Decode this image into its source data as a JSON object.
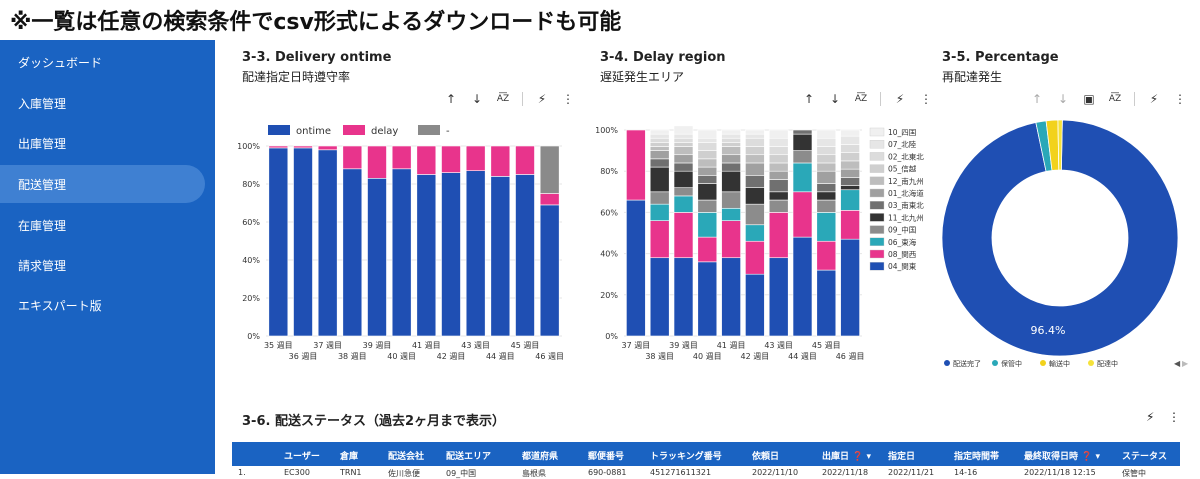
{
  "banner": "※一覧は任意の検索条件でcsv形式によるダウンロードも可能",
  "sidebar": {
    "items": [
      {
        "label": "ダッシュボード"
      },
      {
        "label": "入庫管理"
      },
      {
        "label": "出庫管理"
      },
      {
        "label": "配送管理",
        "active": true
      },
      {
        "label": "在庫管理"
      },
      {
        "label": "請求管理"
      },
      {
        "label": "エキスパート版"
      }
    ]
  },
  "panels": [
    {
      "title": "3-3. Delivery ontime",
      "subtitle": "配達指定日時遵守率"
    },
    {
      "title": "3-4. Delay region",
      "subtitle": "遅延発生エリア"
    },
    {
      "title": "3-5. Percentage",
      "subtitle": "再配達発生"
    }
  ],
  "toolbar_icons": [
    "arrow-up-icon",
    "arrow-down-icon",
    "sort-az-icon",
    "bolt-icon",
    "more-vert-icon"
  ],
  "chart_data": [
    {
      "type": "bar",
      "stacked": true,
      "categories": [
        "35 週目",
        "36 週目",
        "37 週目",
        "38 週目",
        "39 週目",
        "40 週目",
        "41 週目",
        "42 週目",
        "43 週目",
        "44 週目",
        "45 週目",
        "46 週目"
      ],
      "series": [
        {
          "name": "ontime",
          "color": "#1f4fb3",
          "values": [
            99,
            99,
            98,
            88,
            83,
            88,
            85,
            86,
            87,
            84,
            85,
            69
          ]
        },
        {
          "name": "delay",
          "color": "#e8348c",
          "values": [
            1,
            1,
            2,
            12,
            17,
            12,
            15,
            14,
            13,
            16,
            15,
            6
          ]
        },
        {
          "name": "-",
          "color": "#8a8a8a",
          "values": [
            0,
            0,
            0,
            0,
            0,
            0,
            0,
            0,
            0,
            0,
            0,
            25
          ]
        }
      ],
      "ylim": [
        0,
        100
      ],
      "yticks": [
        "0%",
        "20%",
        "40%",
        "60%",
        "80%",
        "100%"
      ],
      "legend": "top"
    },
    {
      "type": "bar",
      "stacked": true,
      "categories": [
        "37 週目",
        "38 週目",
        "39 週目",
        "40 週目",
        "41 週目",
        "42 週目",
        "43 週目",
        "44 週目",
        "45 週目",
        "46 週目"
      ],
      "series": [
        {
          "name": "04_関東",
          "color": "#1f4fb3",
          "values": [
            66,
            38,
            38,
            36,
            38,
            30,
            38,
            48,
            32,
            47
          ]
        },
        {
          "name": "08_関西",
          "color": "#e8348c",
          "values": [
            34,
            18,
            22,
            12,
            18,
            16,
            22,
            22,
            14,
            14
          ]
        },
        {
          "name": "06_東海",
          "color": "#2aa8b8",
          "values": [
            0,
            8,
            8,
            12,
            6,
            8,
            0,
            14,
            14,
            10
          ]
        },
        {
          "name": "09_中国",
          "color": "#8c8c8c",
          "values": [
            0,
            6,
            4,
            6,
            8,
            10,
            6,
            6,
            6,
            0
          ]
        },
        {
          "name": "11_北九州",
          "color": "#333333",
          "values": [
            0,
            12,
            8,
            8,
            10,
            8,
            4,
            8,
            4,
            2
          ]
        },
        {
          "name": "03_南東北",
          "color": "#707070",
          "values": [
            0,
            4,
            4,
            4,
            4,
            6,
            6,
            2,
            4,
            4
          ]
        },
        {
          "name": "01_北海道",
          "color": "#a0a0a0",
          "values": [
            0,
            4,
            4,
            4,
            4,
            6,
            4,
            0,
            6,
            4
          ]
        },
        {
          "name": "12_南九州",
          "color": "#bdbdbd",
          "values": [
            0,
            2,
            4,
            4,
            4,
            4,
            4,
            0,
            4,
            4
          ]
        },
        {
          "name": "05_信越",
          "color": "#cfcfcf",
          "values": [
            0,
            2,
            2,
            4,
            2,
            4,
            4,
            0,
            4,
            4
          ]
        },
        {
          "name": "02_北東北",
          "color": "#dcdcdc",
          "values": [
            0,
            2,
            2,
            4,
            2,
            4,
            4,
            0,
            4,
            4
          ]
        },
        {
          "name": "07_北陸",
          "color": "#e6e6e6",
          "values": [
            0,
            2,
            2,
            2,
            2,
            2,
            4,
            0,
            4,
            4
          ]
        },
        {
          "name": "10_四国",
          "color": "#f0f0f0",
          "values": [
            0,
            2,
            4,
            4,
            2,
            2,
            4,
            0,
            4,
            3
          ]
        }
      ],
      "ylim": [
        0,
        100
      ],
      "yticks": [
        "0%",
        "20%",
        "40%",
        "60%",
        "80%",
        "100%"
      ],
      "legend": "right"
    },
    {
      "type": "pie",
      "donut": true,
      "slices": [
        {
          "name": "配送完了",
          "value": 96.4,
          "color": "#1f4fb3"
        },
        {
          "name": "保管中",
          "value": 1.4,
          "color": "#2aa8b8"
        },
        {
          "name": "輸送中",
          "value": 1.6,
          "color": "#f2d21c"
        },
        {
          "name": "配達中",
          "value": 0.6,
          "color": "#f5e23a"
        }
      ],
      "center_label": "96.4%",
      "legend": "bottom"
    }
  ],
  "table": {
    "title": "3-6. 配送ステータス（過去2ヶ月まで表示）",
    "columns": [
      "ユーザー",
      "倉庫",
      "配送会社",
      "配送エリア",
      "都道府県",
      "郵便番号",
      "トラッキング番号",
      "依頼日",
      "出庫日 ❓ ▾",
      "指定日",
      "指定時間帯",
      "最終取得日時 ❓ ▾",
      "ステータス"
    ],
    "rows": [
      [
        "1.",
        "EC300",
        "TRN1",
        "佐川急便",
        "09_中国",
        "島根県",
        "690-0881",
        "451271611321",
        "2022/11/10",
        "2022/11/18",
        "2022/11/21",
        "14-16",
        "2022/11/18 12:15",
        "保管中"
      ]
    ]
  }
}
